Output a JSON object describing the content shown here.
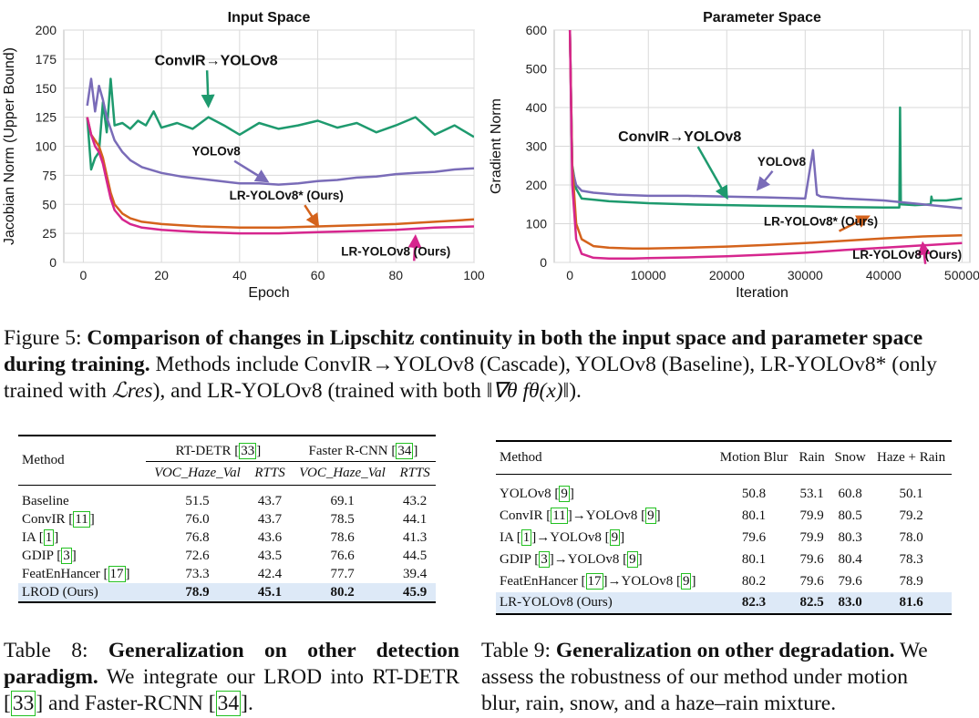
{
  "chart_data": [
    {
      "type": "line",
      "title": "Input Space",
      "xlabel": "Epoch",
      "ylabel": "Jacobian Norm (Upper Bound)",
      "xlim": [
        -5,
        100
      ],
      "ylim": [
        0,
        200
      ],
      "xticks": [
        "0",
        "20",
        "40",
        "60",
        "80",
        "100"
      ],
      "yticks": [
        "0",
        "25",
        "50",
        "75",
        "100",
        "125",
        "150",
        "175",
        "200"
      ],
      "grid": true,
      "series": [
        {
          "name": "ConvIR→YOLOv8",
          "color": "#1e9a6e",
          "x": [
            1,
            2,
            3,
            4,
            5,
            6,
            7,
            8,
            10,
            12,
            14,
            16,
            18,
            20,
            24,
            28,
            32,
            36,
            40,
            45,
            50,
            55,
            60,
            65,
            70,
            75,
            80,
            85,
            90,
            95,
            100
          ],
          "y": [
            125,
            80,
            90,
            95,
            138,
            112,
            158,
            118,
            120,
            115,
            122,
            118,
            130,
            116,
            120,
            115,
            125,
            118,
            110,
            120,
            115,
            118,
            122,
            116,
            120,
            112,
            118,
            125,
            110,
            118,
            108
          ]
        },
        {
          "name": "YOLOv8",
          "color": "#7a6cb8",
          "x": [
            1,
            2,
            3,
            4,
            5,
            6,
            7,
            8,
            10,
            12,
            15,
            20,
            25,
            30,
            35,
            40,
            45,
            50,
            55,
            60,
            65,
            70,
            75,
            80,
            85,
            90,
            95,
            100
          ],
          "y": [
            135,
            158,
            130,
            152,
            140,
            125,
            115,
            105,
            95,
            88,
            82,
            77,
            74,
            72,
            70,
            68,
            68,
            67,
            68,
            70,
            71,
            73,
            74,
            76,
            77,
            78,
            80,
            81
          ]
        },
        {
          "name": "LR-YOLOv8* (Ours)",
          "color": "#d4631c",
          "x": [
            1,
            2,
            3,
            4,
            5,
            6,
            7,
            8,
            10,
            12,
            15,
            20,
            25,
            30,
            40,
            50,
            60,
            70,
            80,
            90,
            100
          ],
          "y": [
            125,
            110,
            105,
            100,
            90,
            75,
            60,
            50,
            42,
            38,
            35,
            33,
            32,
            31,
            30,
            30,
            31,
            32,
            33,
            35,
            37
          ]
        },
        {
          "name": "LR-YOLOv8 (Ours)",
          "color": "#d6268e",
          "x": [
            1,
            2,
            3,
            4,
            5,
            6,
            7,
            8,
            10,
            12,
            15,
            20,
            25,
            30,
            40,
            50,
            60,
            70,
            80,
            90,
            100
          ],
          "y": [
            125,
            110,
            100,
            95,
            85,
            70,
            55,
            45,
            37,
            33,
            30,
            28,
            27,
            26,
            25,
            25,
            26,
            27,
            28,
            30,
            31
          ]
        }
      ],
      "annotations": [
        {
          "text": "ConvIR→YOLOv8",
          "series": "ConvIR→YOLOv8",
          "x": 34,
          "y": 170,
          "target_x": 32,
          "target_y": 135
        },
        {
          "text": "YOLOv8",
          "series": "YOLOv8",
          "x": 34,
          "y": 92,
          "target_x": 47,
          "target_y": 70
        },
        {
          "text": "LR-YOLOv8* (Ours)",
          "series": "LR-YOLOv8* (Ours)",
          "x": 52,
          "y": 54,
          "target_x": 60,
          "target_y": 32
        },
        {
          "text": "LR-YOLOv8 (Ours)",
          "series": "LR-YOLOv8 (Ours)",
          "x": 80,
          "y": 6,
          "target_x": 85,
          "target_y": 22
        }
      ]
    },
    {
      "type": "line",
      "title": "Parameter Space",
      "xlabel": "Iteration",
      "ylabel": "Gradient Norm",
      "xlim": [
        -2000,
        51000
      ],
      "ylim": [
        0,
        600
      ],
      "xticks": [
        "0",
        "10000",
        "20000",
        "30000",
        "40000",
        "50000"
      ],
      "yticks": [
        "0",
        "100",
        "200",
        "300",
        "400",
        "500",
        "600"
      ],
      "grid": true,
      "series": [
        {
          "name": "ConvIR→YOLOv8",
          "color": "#1e9a6e",
          "x": [
            0,
            300,
            800,
            1500,
            3000,
            5000,
            8000,
            10000,
            15000,
            20000,
            25000,
            30000,
            35000,
            40000,
            42000,
            42100,
            42200,
            44000,
            46000,
            46100,
            46200,
            48000,
            50000
          ],
          "y": [
            600,
            250,
            190,
            165,
            162,
            158,
            155,
            153,
            150,
            148,
            146,
            145,
            143,
            142,
            142,
            400,
            150,
            148,
            150,
            170,
            160,
            160,
            165
          ]
        },
        {
          "name": "YOLOv8",
          "color": "#7a6cb8",
          "x": [
            0,
            300,
            800,
            1500,
            3000,
            6000,
            10000,
            15000,
            20000,
            25000,
            30000,
            31000,
            31500,
            32000,
            35000,
            40000,
            45000,
            50000
          ],
          "y": [
            600,
            240,
            200,
            185,
            180,
            175,
            172,
            172,
            170,
            168,
            165,
            290,
            175,
            170,
            165,
            160,
            150,
            140
          ]
        },
        {
          "name": "LR-YOLOv8* (Ours)",
          "color": "#d4631c",
          "x": [
            0,
            300,
            800,
            1500,
            3000,
            5000,
            8000,
            10000,
            15000,
            20000,
            25000,
            30000,
            35000,
            40000,
            45000,
            50000
          ],
          "y": [
            600,
            250,
            100,
            60,
            42,
            38,
            36,
            36,
            38,
            41,
            45,
            50,
            56,
            62,
            67,
            70
          ]
        },
        {
          "name": "LR-YOLOv8 (Ours)",
          "color": "#d6268e",
          "x": [
            0,
            300,
            800,
            1500,
            3000,
            5000,
            8000,
            10000,
            15000,
            20000,
            25000,
            30000,
            35000,
            40000,
            45000,
            50000
          ],
          "y": [
            600,
            200,
            60,
            22,
            12,
            10,
            10,
            11,
            13,
            16,
            20,
            25,
            32,
            38,
            44,
            50
          ]
        }
      ],
      "annotations": [
        {
          "text": "ConvIR→YOLOv8",
          "series": "ConvIR→YOLOv8",
          "x": 14000,
          "y": 313,
          "target_x": 20000,
          "target_y": 168
        },
        {
          "text": "YOLOv8",
          "series": "YOLOv8",
          "x": 27000,
          "y": 250,
          "target_x": 24000,
          "target_y": 190
        },
        {
          "text": "LR-YOLOv8* (Ours)",
          "series": "LR-YOLOv8* (Ours)",
          "x": 32000,
          "y": 95,
          "target_x": 38000,
          "target_y": 118
        },
        {
          "text": "LR-YOLOv8 (Ours)",
          "series": "LR-YOLOv8 (Ours)",
          "x": 43000,
          "y": 10,
          "target_x": 45000,
          "target_y": 48
        }
      ]
    }
  ],
  "figure_caption": {
    "label": "Figure 5: ",
    "bold": "Comparison of changes in Lipschitz continuity in both the input space and parameter space during training.",
    "rest_1": " Methods include ConvIR→YOLOv8 (Cascade), YOLOv8 (Baseline), LR-YOLOv8* (only trained with ",
    "loss_res": "ℒres",
    "rest_2": "), and LR-YOLOv8 (trained with both ",
    "grad_norm": "‖∇θ fθ(x)‖",
    "rest_3": ")."
  },
  "table8": {
    "header": {
      "method": "Method",
      "group1": "RT-DETR",
      "group1_ref": "33",
      "group2": "Faster R-CNN",
      "group2_ref": "34",
      "sub_voc": "VOC_Haze_Val",
      "sub_rtts": "RTTS"
    },
    "rows": [
      {
        "method": "Baseline",
        "ref": "",
        "values": [
          "51.5",
          "43.7",
          "69.1",
          "43.2"
        ]
      },
      {
        "method": "ConvIR",
        "ref": "11",
        "values": [
          "76.0",
          "43.7",
          "78.5",
          "44.1"
        ]
      },
      {
        "method": "IA",
        "ref": "1",
        "values": [
          "76.8",
          "43.6",
          "78.6",
          "41.3"
        ]
      },
      {
        "method": "GDIP",
        "ref": "3",
        "values": [
          "72.6",
          "43.5",
          "76.6",
          "44.5"
        ]
      },
      {
        "method": "FeatEnHancer",
        "ref": "17",
        "values": [
          "73.3",
          "42.4",
          "77.7",
          "39.4"
        ]
      },
      {
        "method": "LROD (Ours)",
        "ref": "",
        "values": [
          "78.9",
          "45.1",
          "80.2",
          "45.9"
        ]
      }
    ],
    "caption": {
      "label": "Table 8: ",
      "bold": "Generalization on other detection paradigm.",
      "rest_1": " We integrate our LROD into RT-DETR [",
      "ref1": "33",
      "rest_2": "] and Faster-RCNN [",
      "ref2": "34",
      "rest_3": "]."
    }
  },
  "table9": {
    "header": {
      "method": "Method",
      "cols": [
        "Motion Blur",
        "Rain",
        "Snow",
        "Haze + Rain"
      ]
    },
    "rows": [
      {
        "prefix": "",
        "prefix_ref": "",
        "method": "YOLOv8",
        "ref": "9",
        "values": [
          "50.8",
          "53.1",
          "60.8",
          "50.1"
        ]
      },
      {
        "prefix": "ConvIR",
        "prefix_ref": "11",
        "method": "YOLOv8",
        "ref": "9",
        "values": [
          "80.1",
          "79.9",
          "80.5",
          "79.2"
        ]
      },
      {
        "prefix": "IA",
        "prefix_ref": "1",
        "method": "YOLOv8",
        "ref": "9",
        "values": [
          "79.6",
          "79.9",
          "80.3",
          "78.0"
        ]
      },
      {
        "prefix": "GDIP",
        "prefix_ref": "3",
        "method": "YOLOv8",
        "ref": "9",
        "values": [
          "80.1",
          "79.6",
          "80.4",
          "78.3"
        ]
      },
      {
        "prefix": "FeatEnHancer",
        "prefix_ref": "17",
        "method": "YOLOv8",
        "ref": "9",
        "values": [
          "80.2",
          "79.6",
          "79.6",
          "78.9"
        ]
      },
      {
        "prefix": "",
        "prefix_ref": "",
        "method": "LR-YOLOv8 (Ours)",
        "ref": "",
        "values": [
          "82.3",
          "82.5",
          "83.0",
          "81.6"
        ]
      }
    ],
    "caption": {
      "label": "Table 9: ",
      "bold": "Generalization on other degradation.",
      "rest": " We assess the robustness of our method under motion blur, rain, snow, and a haze–rain mixture."
    }
  }
}
